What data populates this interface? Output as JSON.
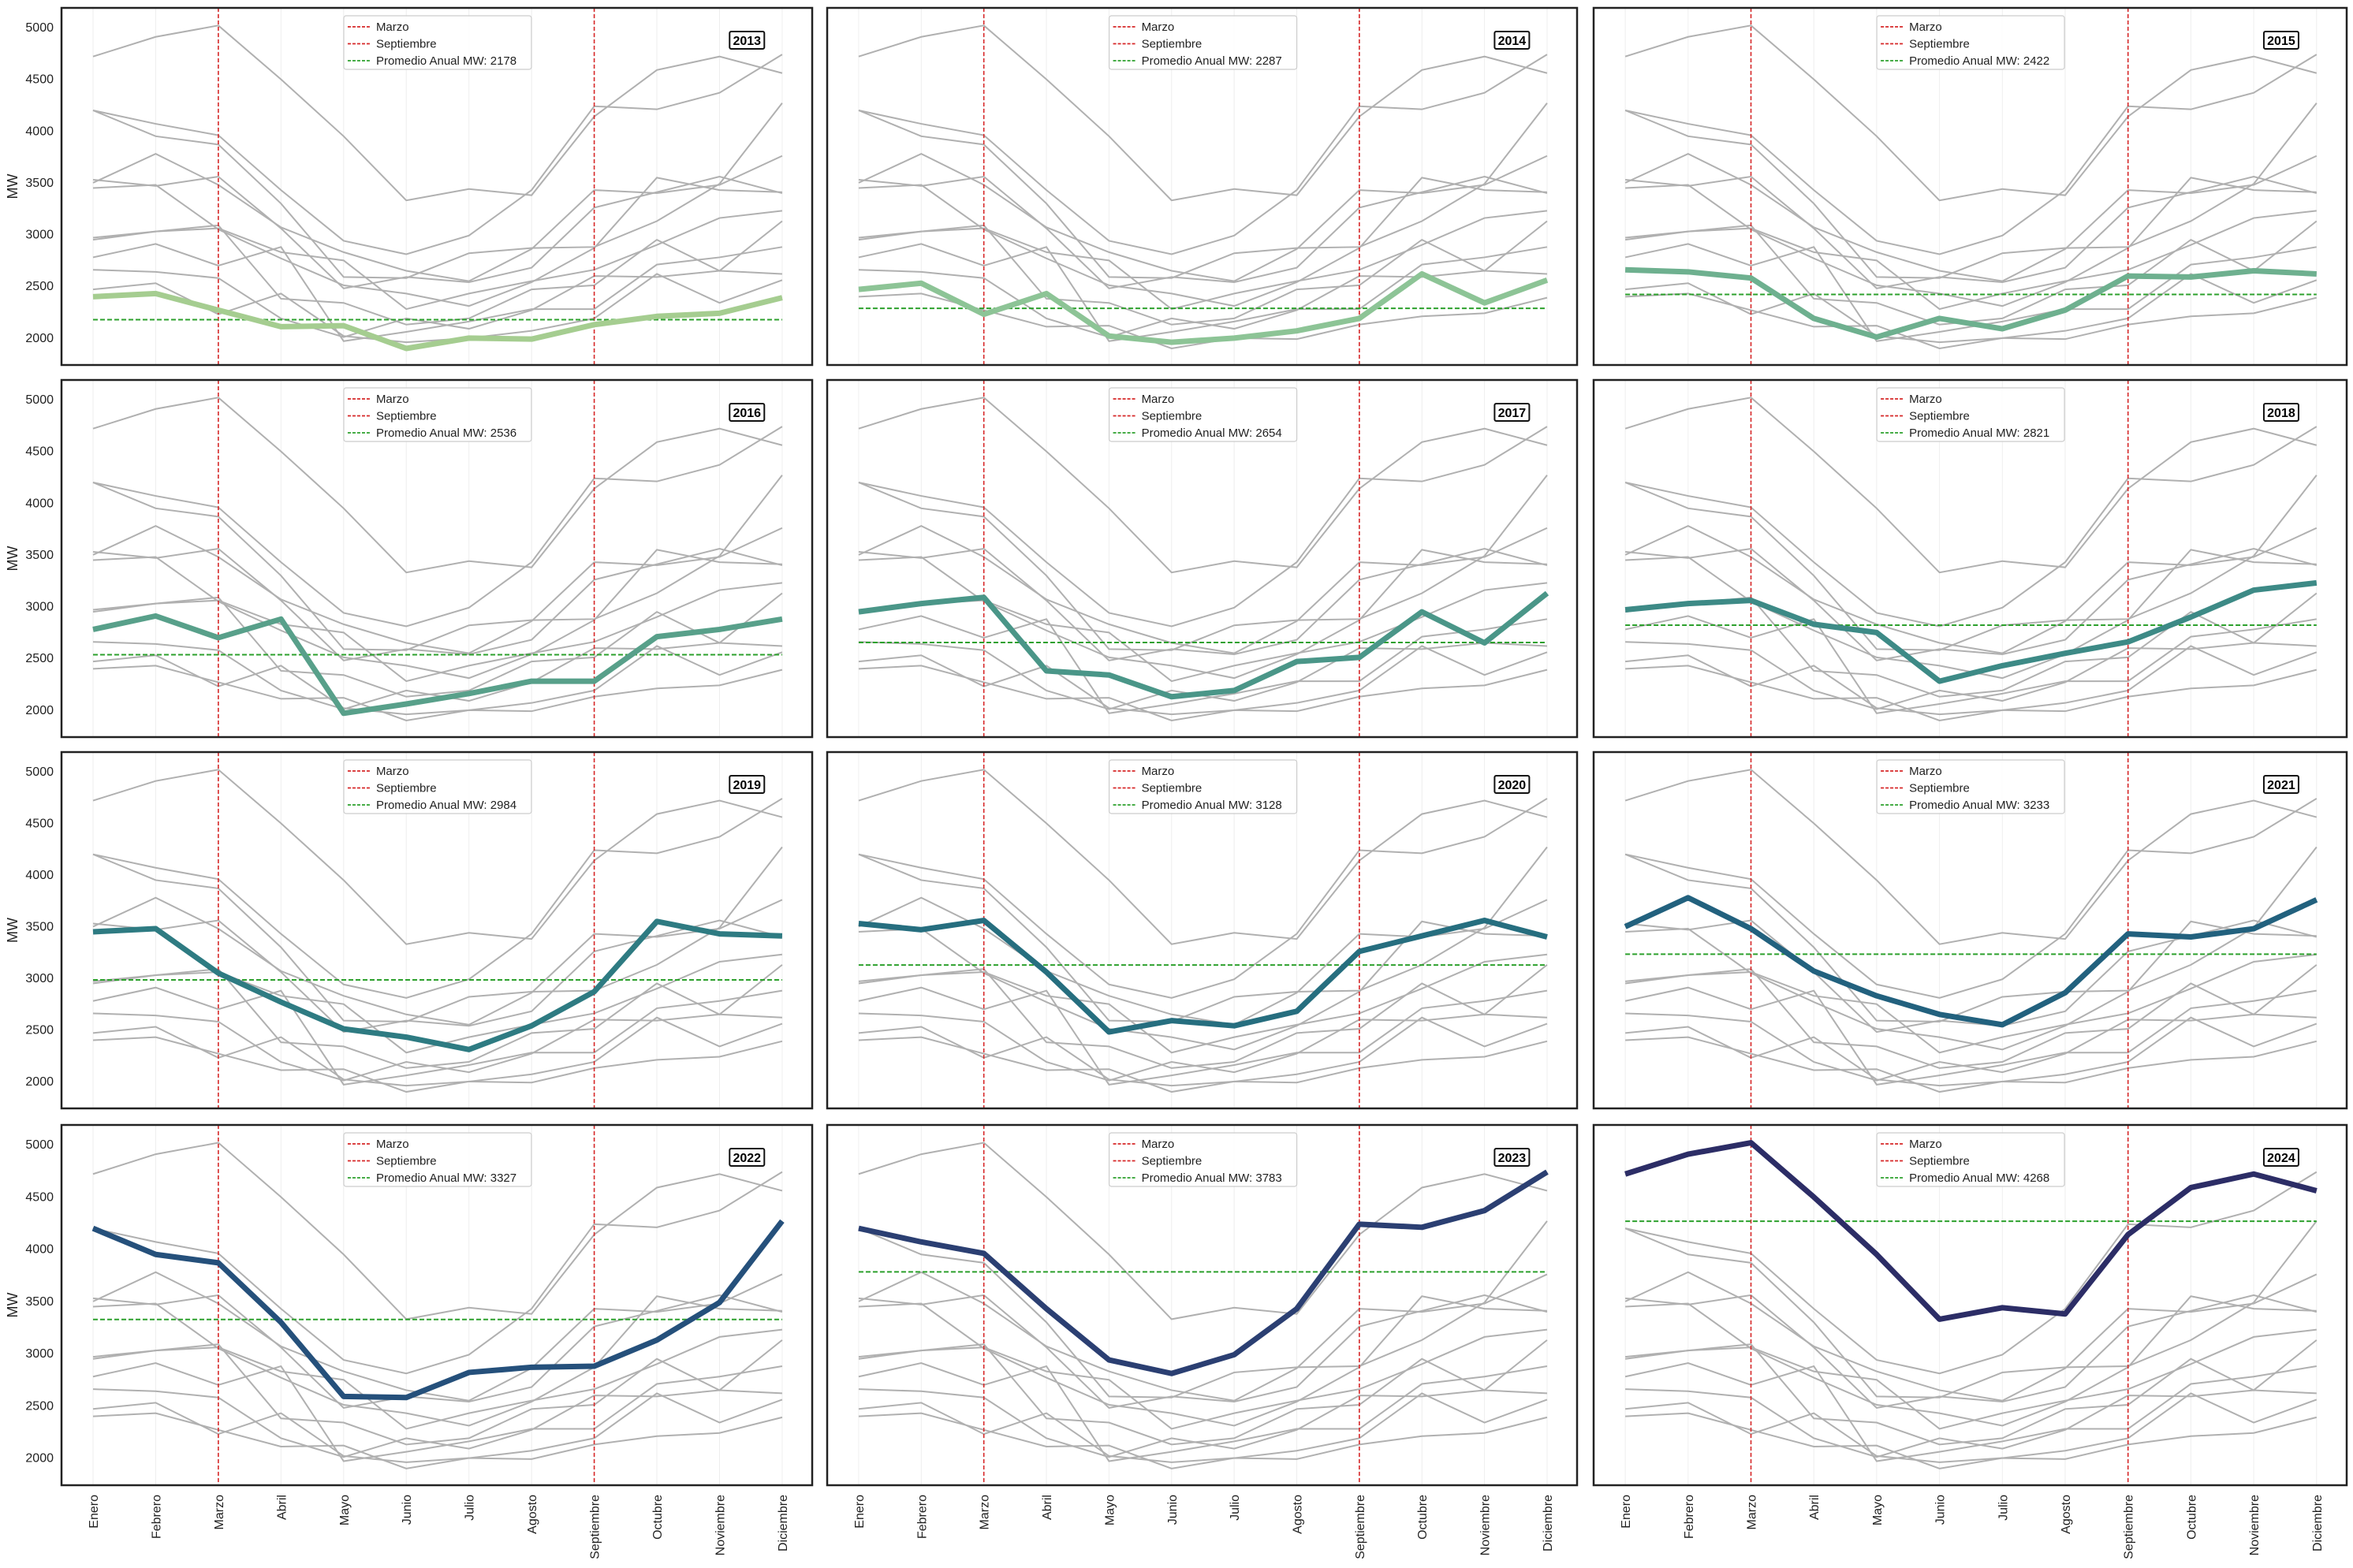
{
  "chart_data": {
    "type": "line",
    "layout": "small-multiples 4x3",
    "ylabel": "MW",
    "ylim": [
      1740,
      5190
    ],
    "yticks": [
      2000,
      2500,
      3000,
      3500,
      4000,
      4500,
      5000
    ],
    "grid": "vertical light",
    "legend_placement": "top-center",
    "categories": [
      "Enero",
      "Febrero",
      "Marzo",
      "Abril",
      "Mayo",
      "Junio",
      "Julio",
      "Agosto",
      "Septiembre",
      "Octubre",
      "Noviembre",
      "Diciembre"
    ],
    "vlines": [
      {
        "label": "Marzo",
        "at": "Marzo",
        "color": "#d62728"
      },
      {
        "label": "Septiembre",
        "at": "Septiembre",
        "color": "#d62728"
      }
    ],
    "avg_label_prefix": "Promedio Anual MW: ",
    "avg_color": "#2ca02c",
    "context_color": "#b0b0b0",
    "series": [
      {
        "name": "2013",
        "color": "#a5cd90",
        "avg": 2178,
        "values": [
          2400,
          2430,
          2270,
          2110,
          2120,
          1900,
          2000,
          1990,
          2130,
          2210,
          2240,
          2390
        ]
      },
      {
        "name": "2014",
        "color": "#8dc496",
        "avg": 2287,
        "values": [
          2470,
          2530,
          2230,
          2430,
          2020,
          1960,
          2000,
          2070,
          2190,
          2620,
          2340,
          2560
        ]
      },
      {
        "name": "2015",
        "color": "#6eb08f",
        "avg": 2422,
        "values": [
          2660,
          2640,
          2580,
          2190,
          2010,
          2190,
          2090,
          2270,
          2600,
          2590,
          2650,
          2620
        ]
      },
      {
        "name": "2016",
        "color": "#58a08a",
        "avg": 2536,
        "values": [
          2780,
          2910,
          2700,
          2880,
          1970,
          2060,
          2160,
          2280,
          2280,
          2710,
          2780,
          2880
        ]
      },
      {
        "name": "2017",
        "color": "#4a9688",
        "avg": 2654,
        "values": [
          2950,
          3030,
          3090,
          2380,
          2340,
          2130,
          2190,
          2470,
          2510,
          2950,
          2650,
          3130
        ]
      },
      {
        "name": "2018",
        "color": "#3d8a86",
        "avg": 2821,
        "values": [
          2970,
          3030,
          3060,
          2830,
          2750,
          2280,
          2430,
          2550,
          2660,
          2900,
          3160,
          3230
        ]
      },
      {
        "name": "2019",
        "color": "#2e7b82",
        "avg": 2984,
        "values": [
          3450,
          3480,
          3050,
          2770,
          2510,
          2430,
          2310,
          2540,
          2870,
          3550,
          3430,
          3410
        ]
      },
      {
        "name": "2020",
        "color": "#266e7f",
        "avg": 3128,
        "values": [
          3530,
          3470,
          3560,
          3060,
          2480,
          2590,
          2540,
          2680,
          3260,
          3410,
          3560,
          3400
        ]
      },
      {
        "name": "2021",
        "color": "#22617e",
        "avg": 3233,
        "values": [
          3500,
          3780,
          3480,
          3070,
          2830,
          2650,
          2550,
          2860,
          3430,
          3400,
          3480,
          3760
        ]
      },
      {
        "name": "2022",
        "color": "#25507b",
        "avg": 3327,
        "values": [
          4200,
          3950,
          3870,
          3300,
          2590,
          2580,
          2820,
          2870,
          2880,
          3130,
          3490,
          4270
        ]
      },
      {
        "name": "2023",
        "color": "#2b3f72",
        "avg": 3783,
        "values": [
          4200,
          4070,
          3960,
          3430,
          2940,
          2810,
          2990,
          3430,
          4240,
          4210,
          4370,
          4740
        ]
      },
      {
        "name": "2024",
        "color": "#2c2d66",
        "avg": 4268,
        "values": [
          4720,
          4910,
          5020,
          4500,
          3950,
          3330,
          3440,
          3380,
          4140,
          4590,
          4720,
          4560
        ]
      }
    ]
  }
}
